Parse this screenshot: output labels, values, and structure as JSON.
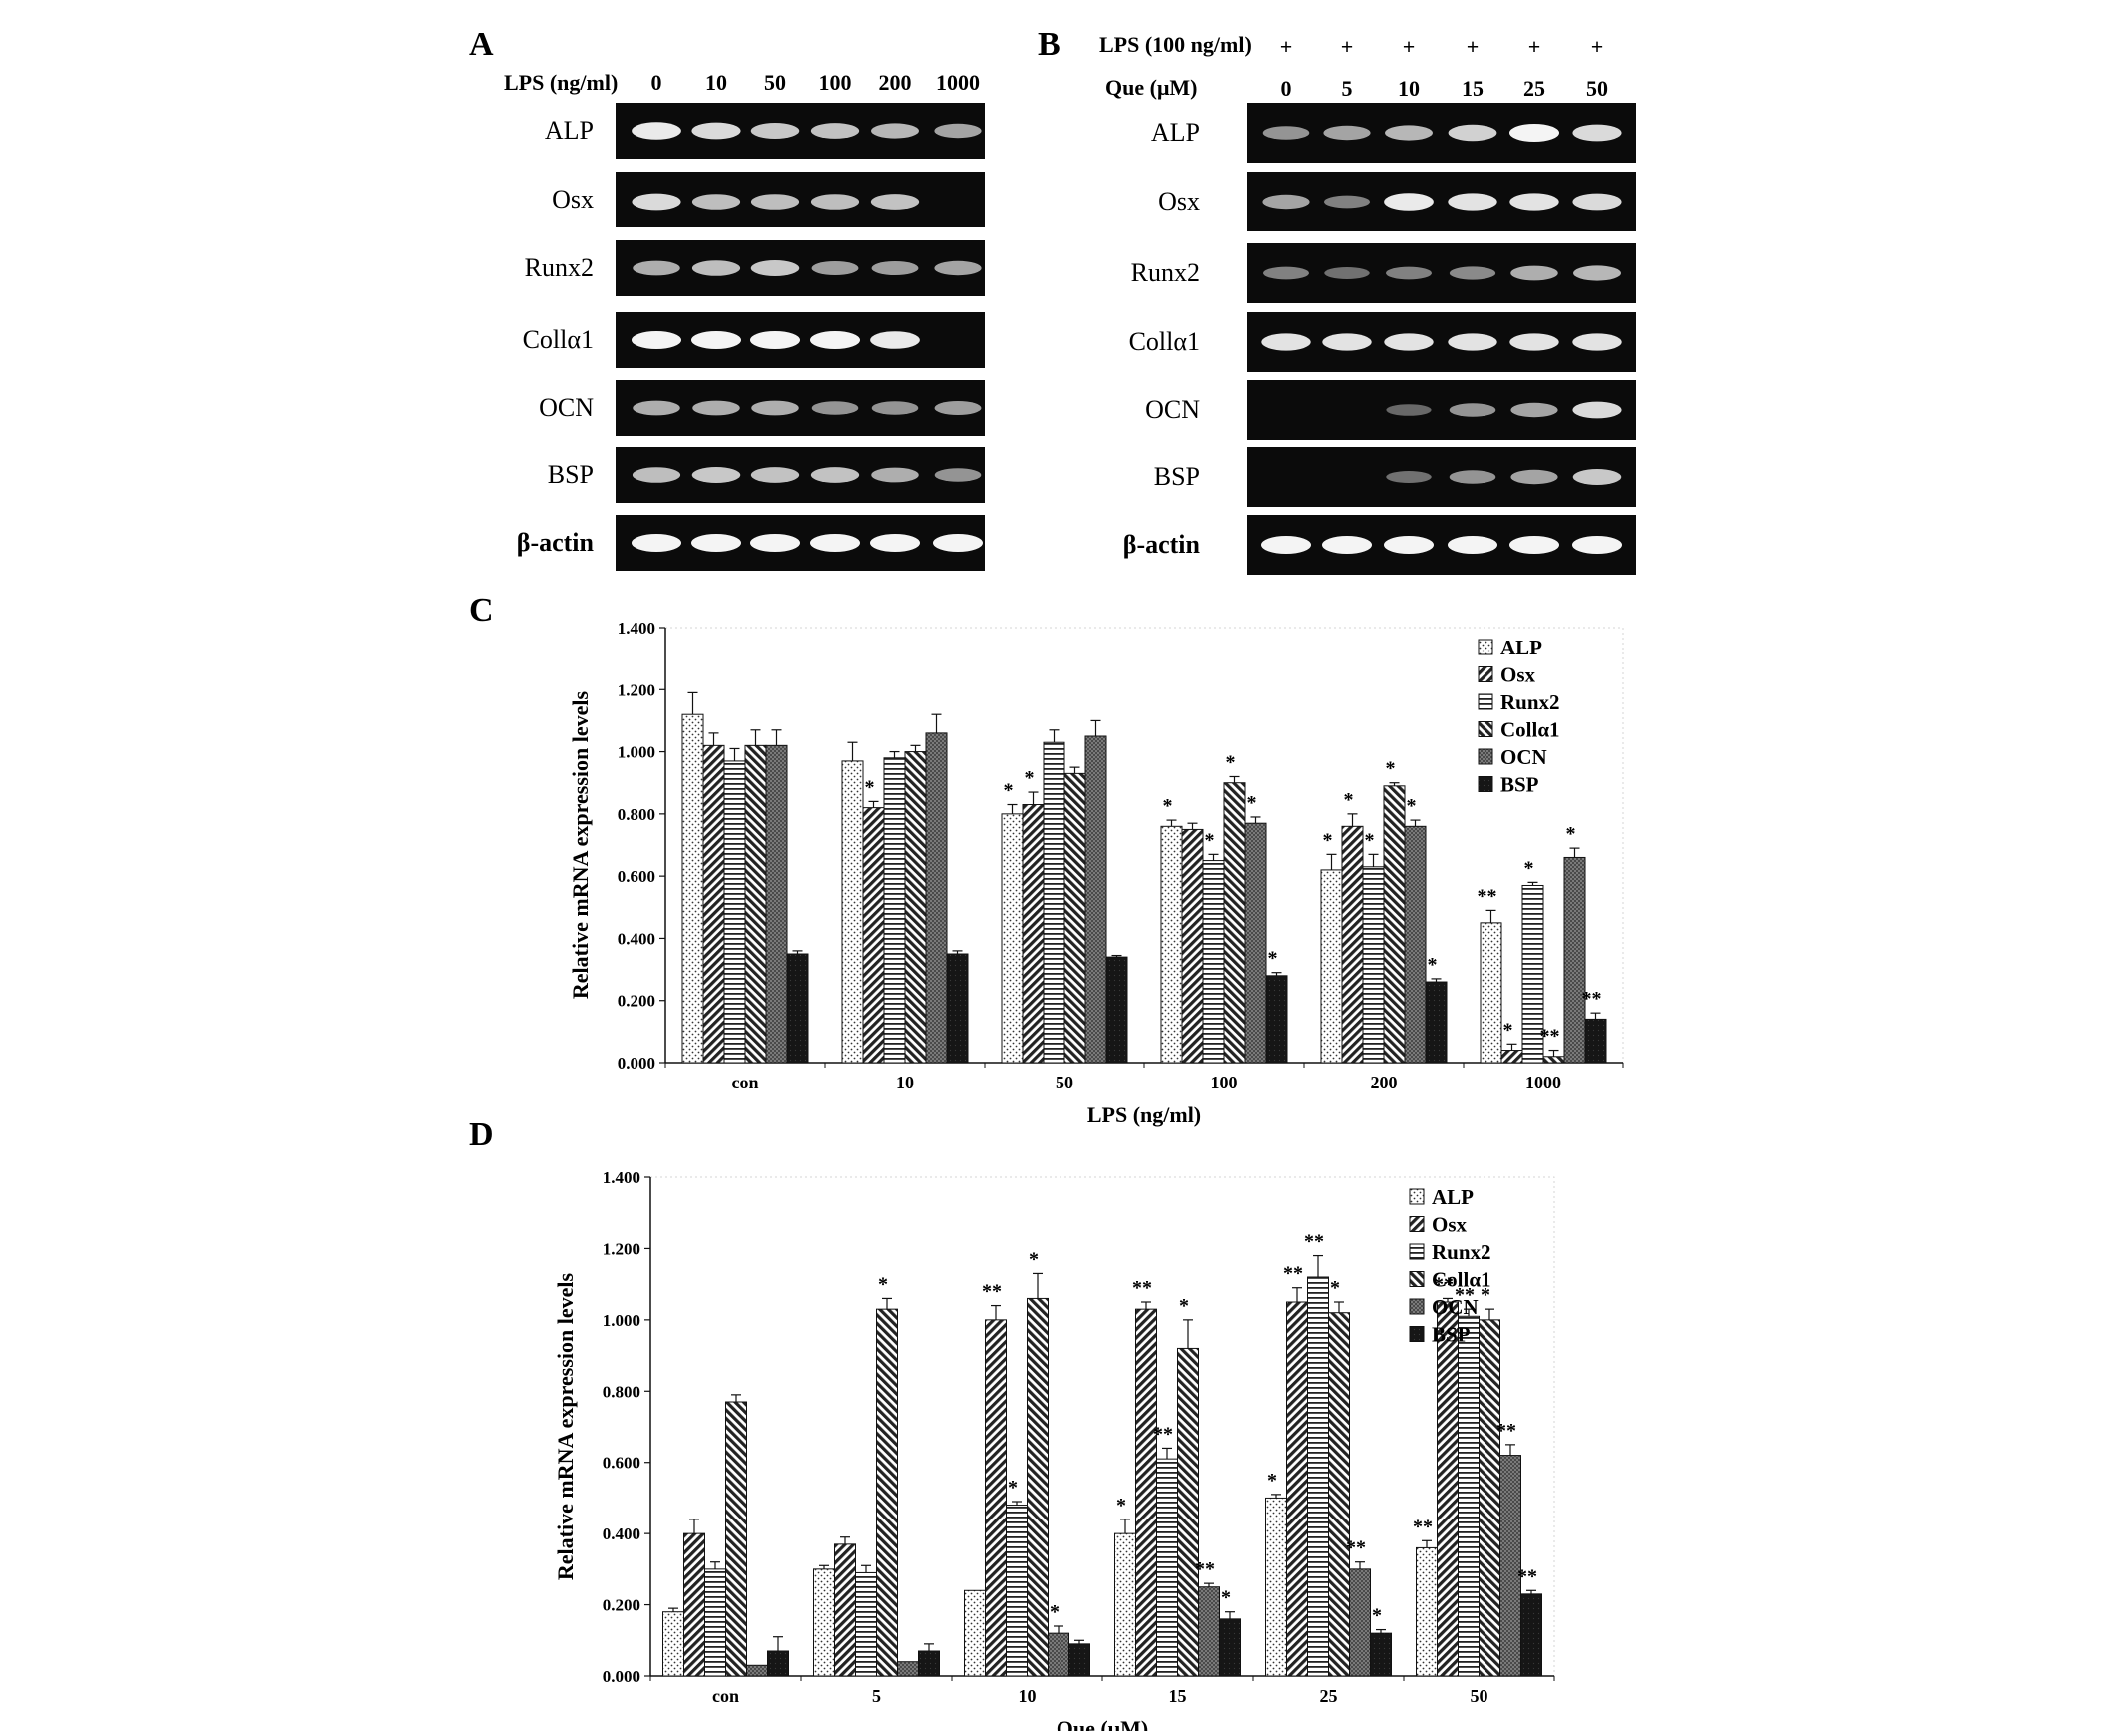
{
  "panels": {
    "A": {
      "letter": "A",
      "header_label": "LPS (ng/ml)",
      "doses": [
        "0",
        "10",
        "50",
        "100",
        "200",
        "1000"
      ],
      "genes": [
        "ALP",
        "Osx",
        "Runx2",
        "Collα1",
        "OCN",
        "BSP",
        "β-actin"
      ],
      "band_intensity": [
        [
          0.95,
          0.85,
          0.75,
          0.72,
          0.65,
          0.55
        ],
        [
          0.85,
          0.7,
          0.7,
          0.7,
          0.72,
          0.0
        ],
        [
          0.6,
          0.7,
          0.75,
          0.5,
          0.5,
          0.55
        ],
        [
          1.0,
          1.0,
          1.0,
          1.0,
          0.95,
          0.0
        ],
        [
          0.6,
          0.6,
          0.6,
          0.45,
          0.45,
          0.5
        ],
        [
          0.7,
          0.75,
          0.72,
          0.72,
          0.6,
          0.45
        ],
        [
          1.0,
          1.0,
          1.0,
          1.0,
          1.0,
          1.0
        ]
      ]
    },
    "B": {
      "letter": "B",
      "lps_label": "LPS (100 ng/ml)",
      "lps_marks": [
        "+",
        "+",
        "+",
        "+",
        "+",
        "+"
      ],
      "que_label": "Que (μM)",
      "doses": [
        "0",
        "5",
        "10",
        "15",
        "25",
        "50"
      ],
      "genes": [
        "ALP",
        "Osx",
        "Runx2",
        "Collα1",
        "OCN",
        "BSP",
        "β-actin"
      ],
      "band_intensity": [
        [
          0.45,
          0.55,
          0.65,
          0.8,
          1.0,
          0.85
        ],
        [
          0.55,
          0.35,
          0.95,
          0.9,
          0.9,
          0.85
        ],
        [
          0.35,
          0.25,
          0.35,
          0.4,
          0.6,
          0.65
        ],
        [
          0.9,
          0.9,
          0.9,
          0.9,
          0.9,
          0.9
        ],
        [
          0.0,
          0.0,
          0.2,
          0.45,
          0.55,
          0.85
        ],
        [
          0.0,
          0.0,
          0.25,
          0.45,
          0.55,
          0.75
        ],
        [
          1.0,
          1.0,
          1.0,
          1.0,
          1.0,
          1.0
        ]
      ]
    },
    "C": {
      "letter": "C"
    },
    "D": {
      "letter": "D"
    }
  },
  "colors": {
    "ink": "#111111",
    "band": "#f4f4f4",
    "gel": "#0b0b0b",
    "grid": "#cccccc"
  },
  "chart_data": [
    {
      "panel": "C",
      "type": "bar",
      "categories": [
        "con",
        "10",
        "50",
        "100",
        "200",
        "1000"
      ],
      "xlabel": "LPS (ng/ml)",
      "ylabel": "Relative mRNA expression levels",
      "ylim": [
        0,
        1.4
      ],
      "yticks": [
        "0.000",
        "0.200",
        "0.400",
        "0.600",
        "0.800",
        "1.000",
        "1.200",
        "1.400"
      ],
      "legend_position": "top-right",
      "series": [
        {
          "name": "ALP",
          "pattern": "dots",
          "values": [
            1.12,
            0.97,
            0.8,
            0.76,
            0.62,
            0.45
          ],
          "errors": [
            0.07,
            0.06,
            0.03,
            0.02,
            0.05,
            0.04
          ],
          "stars": [
            "",
            "",
            "*",
            "*",
            "*",
            "**"
          ]
        },
        {
          "name": "Osx",
          "pattern": "diag",
          "values": [
            1.02,
            0.82,
            0.83,
            0.75,
            0.76,
            0.04
          ],
          "errors": [
            0.04,
            0.02,
            0.04,
            0.02,
            0.04,
            0.02
          ],
          "stars": [
            "",
            "*",
            "*",
            "",
            "*",
            "*"
          ]
        },
        {
          "name": "Runx2",
          "pattern": "horiz",
          "values": [
            0.97,
            0.98,
            1.03,
            0.65,
            0.63,
            0.57
          ],
          "errors": [
            0.04,
            0.02,
            0.04,
            0.02,
            0.04,
            0.01
          ],
          "stars": [
            "",
            "",
            "",
            "*",
            "*",
            "*"
          ]
        },
        {
          "name": "Collα1",
          "pattern": "back",
          "values": [
            1.02,
            1.0,
            0.93,
            0.9,
            0.89,
            0.02
          ],
          "errors": [
            0.05,
            0.02,
            0.02,
            0.02,
            0.01,
            0.02
          ],
          "stars": [
            "",
            "",
            "",
            "*",
            "*",
            "**"
          ]
        },
        {
          "name": "OCN",
          "pattern": "grid",
          "values": [
            1.02,
            1.06,
            1.05,
            0.77,
            0.76,
            0.66
          ],
          "errors": [
            0.05,
            0.06,
            0.05,
            0.02,
            0.02,
            0.03
          ],
          "stars": [
            "",
            "",
            "",
            "*",
            "*",
            "*"
          ]
        },
        {
          "name": "BSP",
          "pattern": "solid",
          "values": [
            0.35,
            0.35,
            0.34,
            0.28,
            0.26,
            0.14
          ],
          "errors": [
            0.01,
            0.01,
            0.005,
            0.01,
            0.01,
            0.02
          ],
          "stars": [
            "",
            "",
            "",
            "*",
            "*",
            "**"
          ]
        }
      ]
    },
    {
      "panel": "D",
      "type": "bar",
      "categories": [
        "con",
        "5",
        "10",
        "15",
        "25",
        "50"
      ],
      "xlabel": "Que (μM)",
      "ylabel": "Relative mRNA expression levels",
      "ylim": [
        0,
        1.4
      ],
      "yticks": [
        "0.000",
        "0.200",
        "0.400",
        "0.600",
        "0.800",
        "1.000",
        "1.200",
        "1.400"
      ],
      "legend_position": "top-right",
      "series": [
        {
          "name": "ALP",
          "pattern": "dots",
          "values": [
            0.18,
            0.3,
            0.24,
            0.4,
            0.5,
            0.36
          ],
          "errors": [
            0.01,
            0.01,
            0.0,
            0.04,
            0.01,
            0.02
          ],
          "stars": [
            "",
            "",
            "",
            "*",
            "*",
            "**"
          ]
        },
        {
          "name": "Osx",
          "pattern": "diag",
          "values": [
            0.4,
            0.37,
            1.0,
            1.03,
            1.05,
            1.05
          ],
          "errors": [
            0.04,
            0.02,
            0.04,
            0.02,
            0.04,
            0.01
          ],
          "stars": [
            "",
            "",
            "**",
            "**",
            "**",
            "**"
          ]
        },
        {
          "name": "Runx2",
          "pattern": "horiz",
          "values": [
            0.3,
            0.29,
            0.48,
            0.61,
            1.12,
            1.01
          ],
          "errors": [
            0.02,
            0.02,
            0.01,
            0.03,
            0.06,
            0.02
          ],
          "stars": [
            "",
            "",
            "*",
            "**",
            "**",
            "**"
          ]
        },
        {
          "name": "Collα1",
          "pattern": "back",
          "values": [
            0.77,
            1.03,
            1.06,
            0.92,
            1.02,
            1.0
          ],
          "errors": [
            0.02,
            0.03,
            0.07,
            0.08,
            0.03,
            0.03
          ],
          "stars": [
            "",
            "*",
            "*",
            "*",
            "*",
            "*"
          ]
        },
        {
          "name": "OCN",
          "pattern": "grid",
          "values": [
            0.03,
            0.04,
            0.12,
            0.25,
            0.3,
            0.62
          ],
          "errors": [
            0.0,
            0.0,
            0.02,
            0.01,
            0.02,
            0.03
          ],
          "stars": [
            "",
            "",
            "*",
            "**",
            "**",
            "**"
          ]
        },
        {
          "name": "BSP",
          "pattern": "solid",
          "values": [
            0.07,
            0.07,
            0.09,
            0.16,
            0.12,
            0.23
          ],
          "errors": [
            0.04,
            0.02,
            0.01,
            0.02,
            0.01,
            0.01
          ],
          "stars": [
            "",
            "",
            "",
            "*",
            "*",
            "**"
          ]
        }
      ]
    }
  ]
}
